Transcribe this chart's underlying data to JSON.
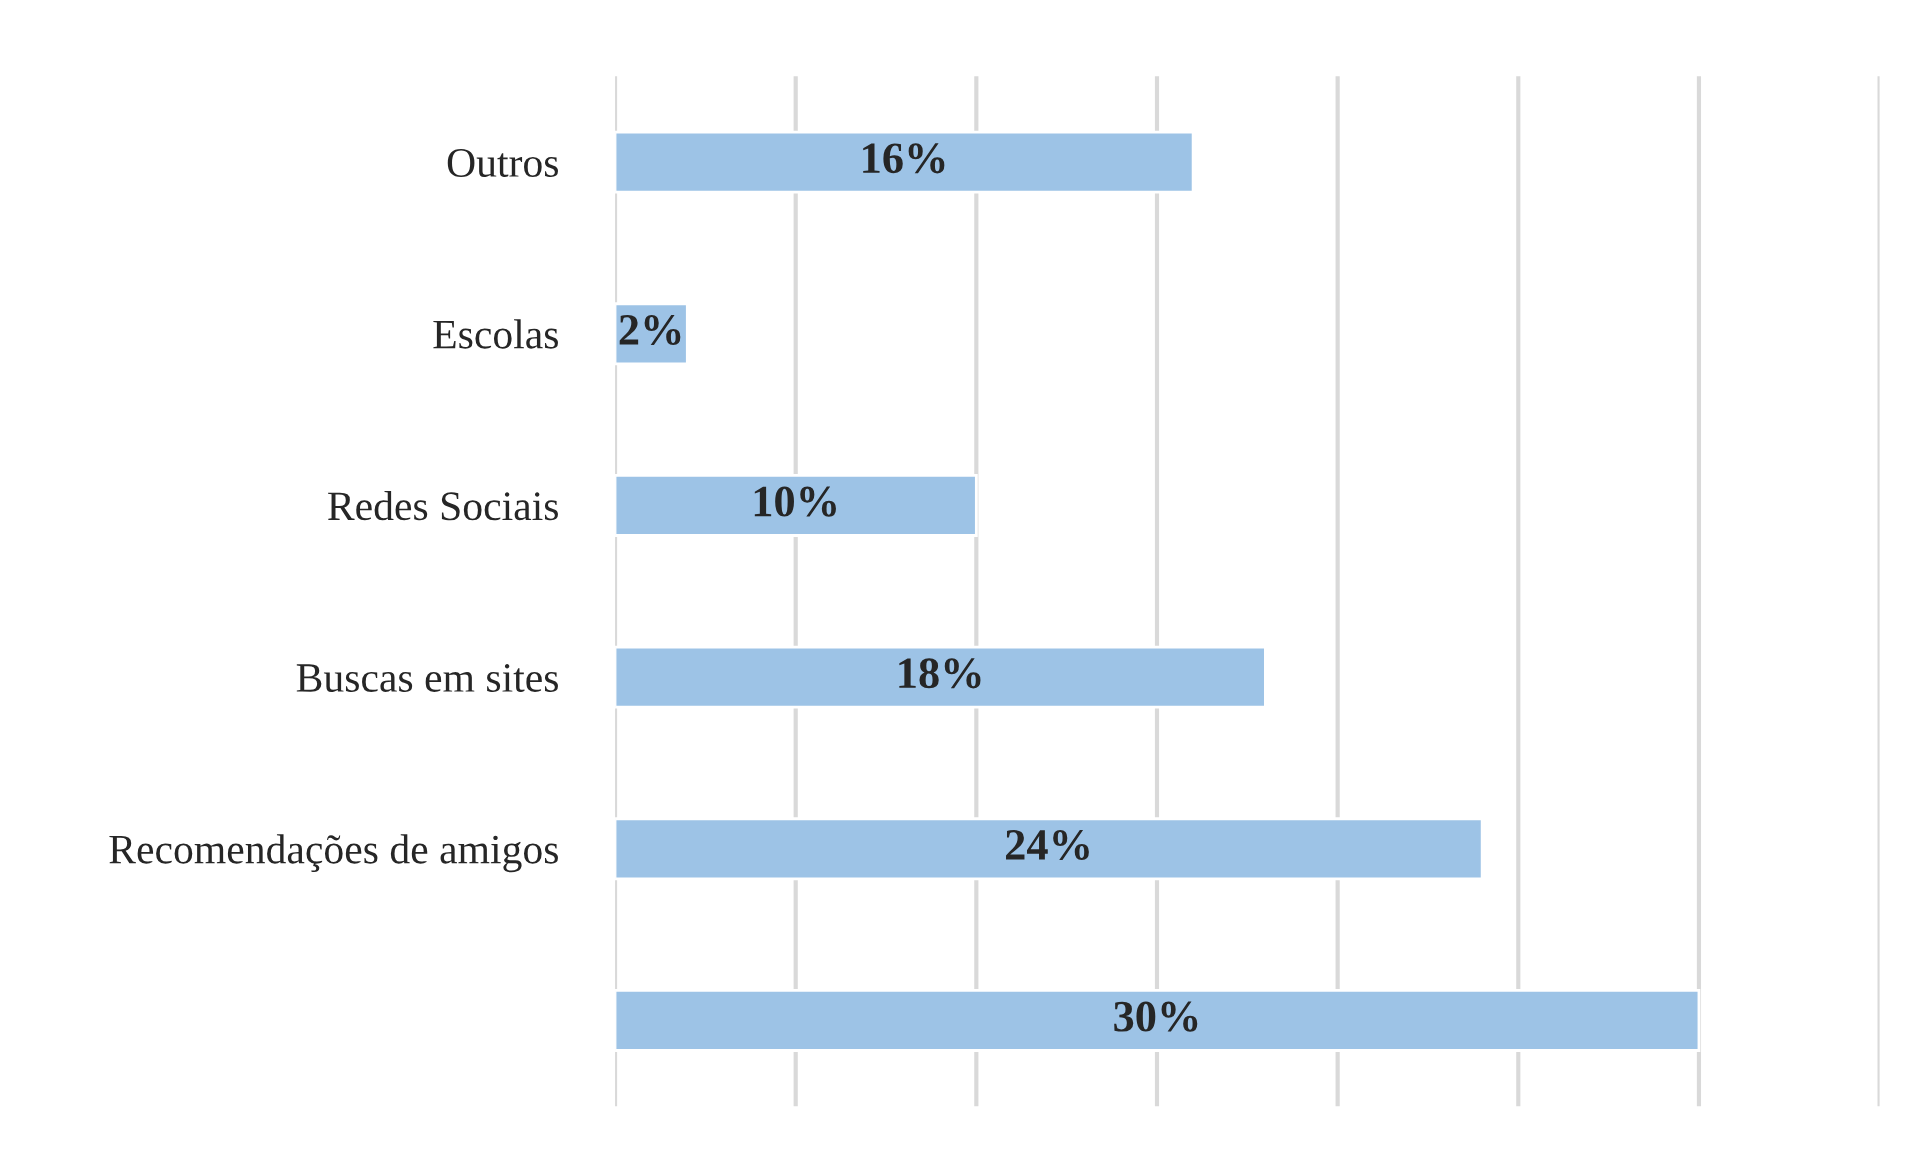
{
  "chart_data": {
    "type": "bar",
    "orientation": "horizontal",
    "categories": [
      "Outros",
      "Escolas",
      "Redes Sociais",
      "Buscas em sites",
      "Recomendações de amigos",
      null
    ],
    "values": [
      16,
      2,
      10,
      18,
      24,
      30
    ],
    "value_labels": [
      "16%",
      "2%",
      "10%",
      "18%",
      "24%",
      "30%"
    ],
    "color": "#9dc3e6",
    "xlim": [
      0,
      35
    ],
    "xticks": [
      {
        "value": 0,
        "label": null
      },
      {
        "value": 5,
        "label": null
      },
      {
        "value": 10,
        "label": null
      },
      {
        "value": 15,
        "label": null
      },
      {
        "value": 20,
        "label": null
      },
      {
        "value": 25,
        "label": null
      },
      {
        "value": 30,
        "label": null
      },
      {
        "value": 35,
        "label": null
      }
    ],
    "grid": "x",
    "tick_labels": "y",
    "legend": false
  }
}
